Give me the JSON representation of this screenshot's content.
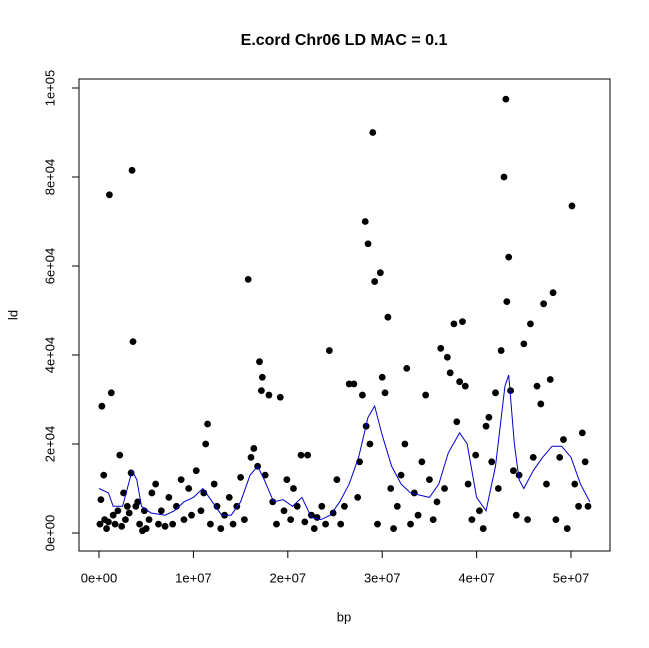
{
  "chart_data": {
    "type": "scatter",
    "title": "E.cord Chr06 LD MAC = 0.1",
    "x_label": "bp",
    "y_label": "ld",
    "xlim": [
      -2120000.0,
      54130000.0
    ],
    "ylim": [
      -4045,
      102022
    ],
    "xticks": [
      {
        "value": 0,
        "label": "0e+00"
      },
      {
        "value": 10000000.0,
        "label": "1e+07"
      },
      {
        "value": 20000000.0,
        "label": "2e+07"
      },
      {
        "value": 30000000.0,
        "label": "3e+07"
      },
      {
        "value": 40000000.0,
        "label": "4e+07"
      },
      {
        "value": 50000000.0,
        "label": "5e+07"
      }
    ],
    "yticks": [
      {
        "value": 0,
        "label": "0e+00"
      },
      {
        "value": 20000,
        "label": "2e+04"
      },
      {
        "value": 40000,
        "label": "4e+04"
      },
      {
        "value": 60000,
        "label": "6e+04"
      },
      {
        "value": 80000,
        "label": "8e+04"
      },
      {
        "value": 100000,
        "label": "1e+05"
      }
    ],
    "points": {
      "color": "#000000",
      "x": [
        100000.0,
        200000.0,
        300000.0,
        500000.0,
        600000.0,
        800000.0,
        1000000.0,
        1100000.0,
        1300000.0,
        1500000.0,
        1700000.0,
        2000000.0,
        2200000.0,
        2400000.0,
        2600000.0,
        2800000.0,
        3000000.0,
        3200000.0,
        3400000.0,
        3500000.0,
        3600000.0,
        3900000.0,
        4100000.0,
        4300000.0,
        4600000.0,
        4800000.0,
        5000000.0,
        5300000.0,
        5600000.0,
        6000000.0,
        6300000.0,
        6600000.0,
        7000000.0,
        7400000.0,
        7800000.0,
        8200000.0,
        8700000.0,
        9000000.0,
        9500000.0,
        9800000.0,
        10300000.0,
        10800000.0,
        11100000.0,
        11300000.0,
        11500000.0,
        11800000.0,
        12200000.0,
        12500000.0,
        12900000.0,
        13300000.0,
        13800000.0,
        14200000.0,
        14600000.0,
        15000000.0,
        15400000.0,
        15800000.0,
        16100000.0,
        16400000.0,
        16800000.0,
        17000000.0,
        17200000.0,
        17300000.0,
        17600000.0,
        18000000.0,
        18400000.0,
        18800000.0,
        19200000.0,
        19600000.0,
        19900000.0,
        20300000.0,
        20600000.0,
        21000000.0,
        21400000.0,
        21800000.0,
        22100000.0,
        22500000.0,
        22800000.0,
        23100000.0,
        23600000.0,
        24000000.0,
        24400000.0,
        24800000.0,
        25200000.0,
        25600000.0,
        26000000.0,
        26500000.0,
        27000000.0,
        27400000.0,
        27600000.0,
        27900000.0,
        28200000.0,
        28300000.0,
        28500000.0,
        28700000.0,
        29000000.0,
        29200000.0,
        29500000.0,
        29800000.0,
        30000000.0,
        30300000.0,
        30600000.0,
        30900000.0,
        31200000.0,
        31600000.0,
        32000000.0,
        32400000.0,
        32600000.0,
        33000000.0,
        33400000.0,
        33800000.0,
        34200000.0,
        34600000.0,
        35000000.0,
        35400000.0,
        35800000.0,
        36200000.0,
        36600000.0,
        36900000.0,
        37200000.0,
        37600000.0,
        37900000.0,
        38200000.0,
        38500000.0,
        38800000.0,
        39100000.0,
        39500000.0,
        39900000.0,
        40300000.0,
        40700000.0,
        41000000.0,
        41300000.0,
        41600000.0,
        42000000.0,
        42300000.0,
        42600000.0,
        42900000.0,
        43100000.0,
        43200000.0,
        43400000.0,
        43600000.0,
        43900000.0,
        44200000.0,
        44500000.0,
        45000000.0,
        45400000.0,
        45700000.0,
        46000000.0,
        46400000.0,
        46800000.0,
        47100000.0,
        47400000.0,
        47800000.0,
        48100000.0,
        48400000.0,
        48800000.0,
        49200000.0,
        49600000.0,
        50100000.0,
        50400000.0,
        50800000.0,
        51200000.0,
        51500000.0,
        51800000.0
      ],
      "y": [
        2000,
        7500,
        28500,
        13000,
        3000,
        1000,
        2500,
        76000,
        31500,
        4000,
        2000,
        5000,
        17500,
        1500,
        9000,
        3000,
        6000,
        4500,
        13500,
        81500,
        43000,
        6000,
        7000,
        2000,
        500,
        5000,
        1000,
        3000,
        9000,
        11000,
        2000,
        5000,
        1500,
        8000,
        2000,
        6000,
        12000,
        3000,
        10000,
        4000,
        14000,
        5000,
        9000,
        20000,
        24500,
        2000,
        11000,
        6000,
        1000,
        4000,
        8000,
        2000,
        6000,
        12500,
        3000,
        57000,
        17000,
        19000,
        15000,
        38500,
        32000,
        35000,
        13000,
        31000,
        7000,
        2000,
        30500,
        5000,
        12000,
        3000,
        10000,
        6000,
        17500,
        2500,
        17500,
        4000,
        1000,
        3500,
        6000,
        2000,
        41000,
        4500,
        12000,
        2000,
        6000,
        33500,
        33500,
        8000,
        16000,
        31000,
        70000,
        24000,
        65000,
        20000,
        90000,
        56500,
        2000,
        58500,
        35000,
        31500,
        48500,
        10000,
        1000,
        6000,
        13000,
        20000,
        37000,
        2000,
        9000,
        4000,
        16000,
        31000,
        12000,
        3000,
        7000,
        41500,
        10000,
        39500,
        36000,
        47000,
        25000,
        34000,
        47500,
        33000,
        11000,
        3000,
        17500,
        5000,
        1000,
        24000,
        26000,
        16000,
        31500,
        10000,
        41000,
        80000,
        97500,
        52000,
        62000,
        32000,
        14000,
        4000,
        13000,
        42500,
        3000,
        47000,
        17000,
        33000,
        29000,
        51500,
        11000,
        34500,
        54000,
        3000,
        17000,
        21000,
        1000,
        73500,
        11000,
        6000,
        22500,
        16000,
        6000
      ]
    },
    "smooth": {
      "color": "#0000cc",
      "x": [
        0,
        1000000.0,
        1500000.0,
        2500000.0,
        3000000.0,
        3500000.0,
        4000000.0,
        4500000.0,
        5500000.0,
        7000000.0,
        8000000.0,
        9000000.0,
        10000000.0,
        11000000.0,
        12000000.0,
        13000000.0,
        14000000.0,
        15000000.0,
        16000000.0,
        16800000.0,
        17500000.0,
        18500000.0,
        19500000.0,
        20500000.0,
        21500000.0,
        22500000.0,
        23500000.0,
        24500000.0,
        25500000.0,
        26500000.0,
        27500000.0,
        28500000.0,
        29200000.0,
        30000000.0,
        31000000.0,
        32000000.0,
        33000000.0,
        35000000.0,
        36000000.0,
        37000000.0,
        38200000.0,
        39000000.0,
        40000000.0,
        41000000.0,
        42000000.0,
        43000000.0,
        43400000.0,
        44000000.0,
        44500000.0,
        45000000.0,
        46000000.0,
        47000000.0,
        48000000.0,
        49000000.0,
        50000000.0,
        51000000.0,
        52000000.0
      ],
      "y": [
        10000,
        9000,
        6000,
        6000,
        10000,
        14000,
        12000,
        6000,
        4500,
        4000,
        5000,
        7000,
        8000,
        10000,
        7000,
        4000,
        4000,
        7000,
        13000,
        15000,
        12000,
        7000,
        7500,
        6000,
        8000,
        3500,
        3000,
        4000,
        7000,
        11000,
        17000,
        26000,
        28500,
        22000,
        15000,
        11000,
        9000,
        8000,
        11000,
        18000,
        22500,
        20000,
        8000,
        5000,
        15000,
        33000,
        35500,
        20000,
        12000,
        10000,
        14000,
        17000,
        19500,
        19500,
        17000,
        11000,
        7000
      ]
    }
  }
}
